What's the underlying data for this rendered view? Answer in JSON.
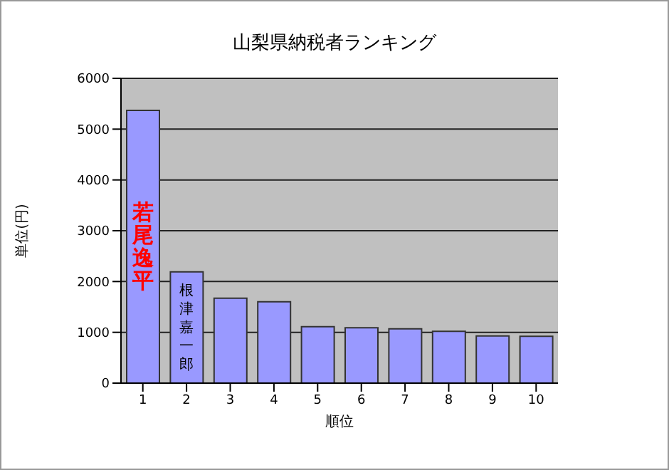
{
  "chart_data": {
    "type": "bar",
    "title": "山梨県納税者ランキング",
    "xlabel": "順位",
    "ylabel": "単位(円)",
    "categories": [
      "1",
      "2",
      "3",
      "4",
      "5",
      "6",
      "7",
      "8",
      "9",
      "10"
    ],
    "values": [
      5370,
      2190,
      1670,
      1600,
      1110,
      1090,
      1070,
      1020,
      930,
      920
    ],
    "color": "#9999ff",
    "ylim": [
      0,
      6000
    ],
    "yticks": [
      0,
      1000,
      2000,
      3000,
      4000,
      5000,
      6000
    ],
    "grid": "y",
    "annotations": [
      "若尾逸平",
      "根津嘉一郎"
    ]
  }
}
